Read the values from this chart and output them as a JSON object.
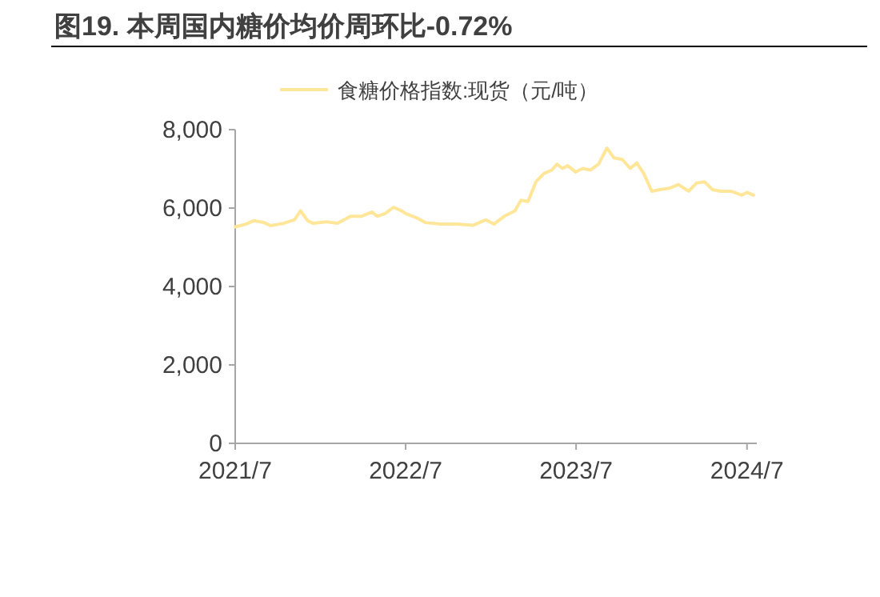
{
  "chart_data": {
    "type": "line",
    "title": "图19. 本周国内糖价均价周环比-0.72%",
    "x": [
      "2021-07-01",
      "2021-07-24",
      "2021-08-10",
      "2021-09-01",
      "2021-09-15",
      "2021-10-12",
      "2021-11-05",
      "2021-11-18",
      "2021-12-03",
      "2021-12-15",
      "2022-01-12",
      "2022-02-05",
      "2022-03-05",
      "2022-03-28",
      "2022-04-20",
      "2022-05-01",
      "2022-05-18",
      "2022-06-05",
      "2022-06-22",
      "2022-07-01",
      "2022-07-25",
      "2022-08-12",
      "2022-09-15",
      "2022-10-18",
      "2022-11-22",
      "2022-12-20",
      "2023-01-06",
      "2023-01-28",
      "2023-02-20",
      "2023-03-05",
      "2023-03-20",
      "2023-04-06",
      "2023-04-23",
      "2023-05-10",
      "2023-05-21",
      "2023-06-02",
      "2023-06-13",
      "2023-06-30",
      "2023-07-15",
      "2023-08-01",
      "2023-08-18",
      "2023-09-05",
      "2023-09-20",
      "2023-10-08",
      "2023-10-25",
      "2023-11-08",
      "2023-11-23",
      "2023-12-10",
      "2023-12-27",
      "2024-01-18",
      "2024-02-05",
      "2024-02-27",
      "2024-03-15",
      "2024-04-01",
      "2024-04-18",
      "2024-05-06",
      "2024-05-28",
      "2024-06-20",
      "2024-07-01",
      "2024-07-15"
    ],
    "series": [
      {
        "name": "食糖价格指数:现货（元/吨）",
        "color": "#ffe699",
        "values": [
          5520,
          5590,
          5680,
          5630,
          5550,
          5610,
          5700,
          5930,
          5680,
          5610,
          5650,
          5610,
          5790,
          5790,
          5900,
          5790,
          5860,
          6020,
          5930,
          5860,
          5750,
          5630,
          5590,
          5590,
          5560,
          5700,
          5590,
          5790,
          5930,
          6200,
          6170,
          6670,
          6880,
          6970,
          7120,
          7010,
          7080,
          6920,
          7010,
          6970,
          7120,
          7530,
          7280,
          7240,
          7010,
          7150,
          6880,
          6430,
          6470,
          6510,
          6600,
          6430,
          6640,
          6670,
          6470,
          6430,
          6430,
          6330,
          6400,
          6330
        ]
      }
    ],
    "xlim": [
      "2021-07-01",
      "2024-07-22"
    ],
    "xticks": [
      {
        "value": "2021-07-01",
        "label": "2021/7"
      },
      {
        "value": "2022-07-01",
        "label": "2022/7"
      },
      {
        "value": "2023-07-01",
        "label": "2023/7"
      },
      {
        "value": "2024-07-01",
        "label": "2024/7"
      }
    ],
    "ylim": [
      0,
      8000
    ],
    "yticks": [
      {
        "value": 0,
        "label": "0"
      },
      {
        "value": 2000,
        "label": "2,000"
      },
      {
        "value": 4000,
        "label": "4,000"
      },
      {
        "value": 6000,
        "label": "6,000"
      },
      {
        "value": 8000,
        "label": "8,000"
      }
    ],
    "grid": false,
    "legend": "top",
    "line_style": "solid",
    "marker": "none"
  }
}
